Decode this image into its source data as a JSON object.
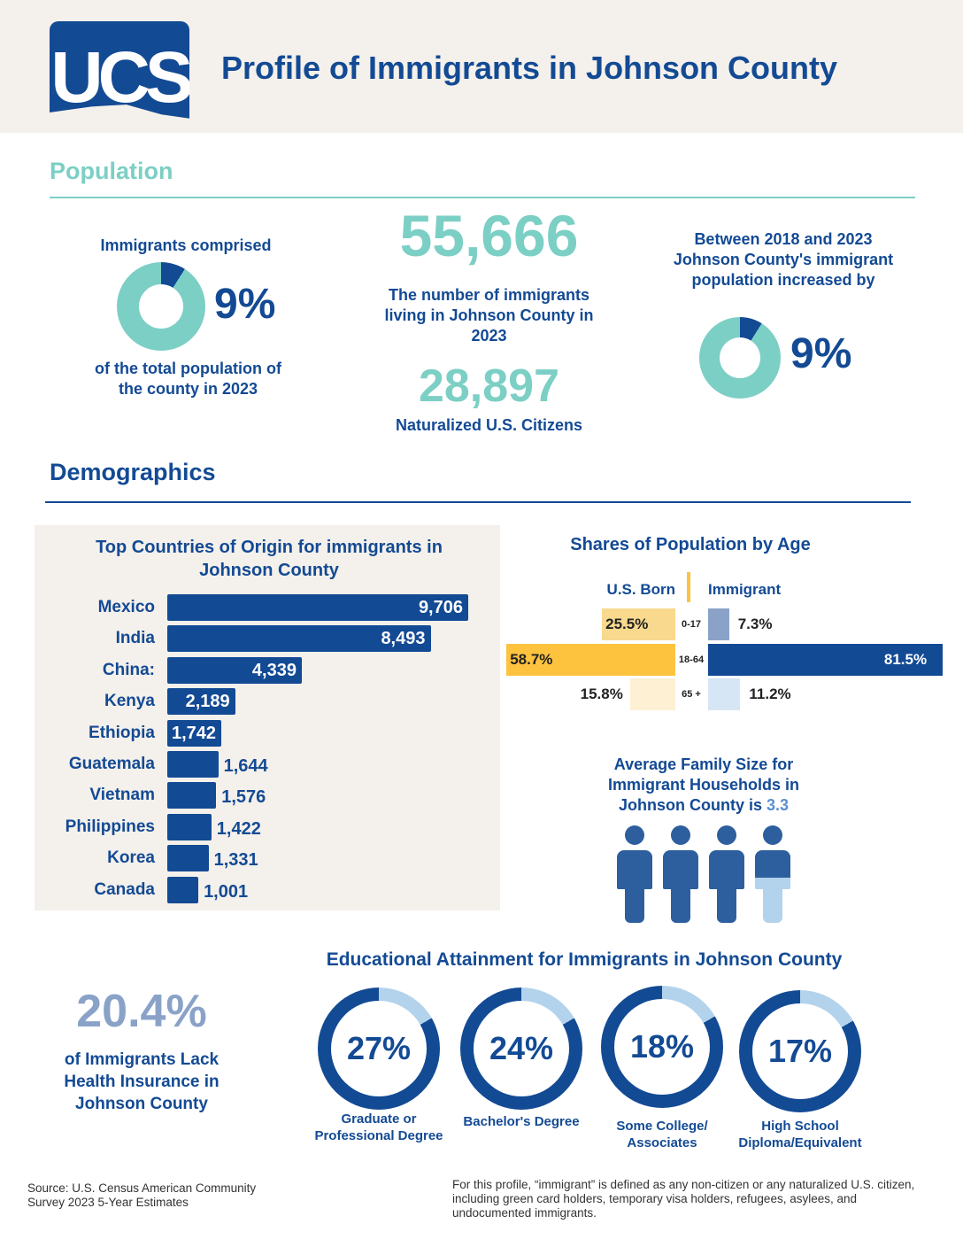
{
  "header": {
    "logo_text": "UCS",
    "title": "Profile of Immigrants in Johnson County"
  },
  "population": {
    "heading": "Population",
    "share": {
      "top": "Immigrants comprised",
      "value": "9%",
      "fraction": 0.09,
      "bottom": "of the total population of the county in 2023"
    },
    "count": {
      "value": "55,666",
      "label": "The number of immigrants living in Johnson County in 2023"
    },
    "naturalized": {
      "value": "28,897",
      "label": "Naturalized U.S. Citizens"
    },
    "growth": {
      "top": "Between 2018 and 2023 Johnson County's immigrant population increased by",
      "value": "9%",
      "fraction": 0.09
    }
  },
  "demographics": {
    "heading": "Demographics",
    "family": {
      "line1": "Average Family Size for Immigrant Households in Johnson County is ",
      "value": "3.3",
      "size": 3.3
    },
    "insurance": {
      "value": "20.4%",
      "label": "of Immigrants Lack Health Insurance in Johnson County"
    }
  },
  "colors": {
    "navy": "#134a94",
    "teal": "#7ccfc4",
    "beige": "#f4f0eb",
    "yellow": "#fdc33f",
    "light_blue": "#b3d3ec"
  },
  "chart_data": [
    {
      "type": "bar",
      "orientation": "horizontal",
      "title": "Top Countries of Origin for immigrants in Johnson County",
      "categories": [
        "Mexico",
        "India",
        "China:",
        "Kenya",
        "Ethiopia",
        "Guatemala",
        "Vietnam",
        "Philippines",
        "Korea",
        "Canada"
      ],
      "values": [
        9706,
        8493,
        4339,
        2189,
        1742,
        1644,
        1576,
        1422,
        1331,
        1001
      ],
      "labels": [
        "9,706",
        "8,493",
        "4,339",
        "2,189",
        "1,742",
        "1,644",
        "1,576",
        "1,422",
        "1,331",
        "1,001"
      ]
    },
    {
      "type": "bar",
      "orientation": "diverging",
      "title": "Shares of Population by Age",
      "categories": [
        "0-17",
        "18-64",
        "65 +"
      ],
      "series": [
        {
          "name": "U.S. Born",
          "values": [
            25.5,
            58.7,
            15.8
          ],
          "labels": [
            "25.5%",
            "58.7%",
            "15.8%"
          ]
        },
        {
          "name": "Immigrant",
          "values": [
            7.3,
            81.5,
            11.2
          ],
          "labels": [
            "7.3%",
            "81.5%",
            "11.2%"
          ]
        }
      ]
    },
    {
      "type": "pie",
      "title": "Educational Attainment for Immigrants in Johnson County",
      "categories": [
        "Graduate or Professional Degree",
        "Bachelor's Degree",
        "Some College/ Associates",
        "High School Diploma/Equivalent"
      ],
      "values": [
        27,
        24,
        18,
        17
      ],
      "labels": [
        "27%",
        "24%",
        "18%",
        "17%"
      ]
    }
  ],
  "footer": {
    "source": "Source: U.S. Census American Community Survey 2023 5-Year Estimates",
    "definition": "For this profile, “immigrant” is defined as any non-citizen or any naturalized U.S. citizen, including green card holders, temporary visa holders, refugees, asylees, and undocumented immigrants."
  }
}
